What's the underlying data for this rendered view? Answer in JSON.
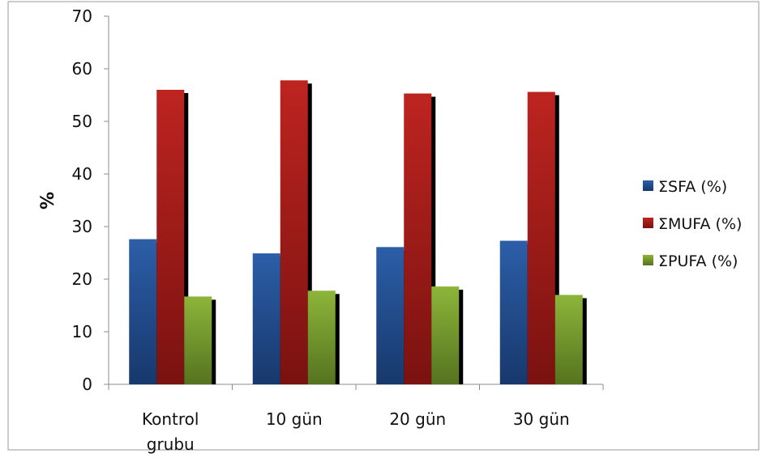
{
  "chart_data": {
    "type": "bar",
    "title": "",
    "xlabel": "",
    "ylabel": "%",
    "ylim": [
      0,
      70
    ],
    "yticks": [
      0,
      10,
      20,
      30,
      40,
      50,
      60,
      70
    ],
    "grid": false,
    "legend_position": "right",
    "categories": [
      [
        "Kontrol",
        "grubu"
      ],
      [
        "10 gün"
      ],
      [
        "20 gün"
      ],
      [
        "30 gün"
      ]
    ],
    "series": [
      {
        "name": "ΣSFA (%)",
        "color": "#2c5ea8",
        "color_dark": "#17386c",
        "values": [
          27.6,
          24.9,
          26.1,
          27.3
        ]
      },
      {
        "name": "ΣMUFA (%)",
        "color": "#bd2420",
        "color_dark": "#7a1210",
        "values": [
          56.0,
          57.8,
          55.3,
          55.6
        ]
      },
      {
        "name": "ΣPUFA (%)",
        "color": "#8db53a",
        "color_dark": "#55731f",
        "values": [
          16.7,
          17.8,
          18.6,
          17.0
        ]
      }
    ]
  }
}
